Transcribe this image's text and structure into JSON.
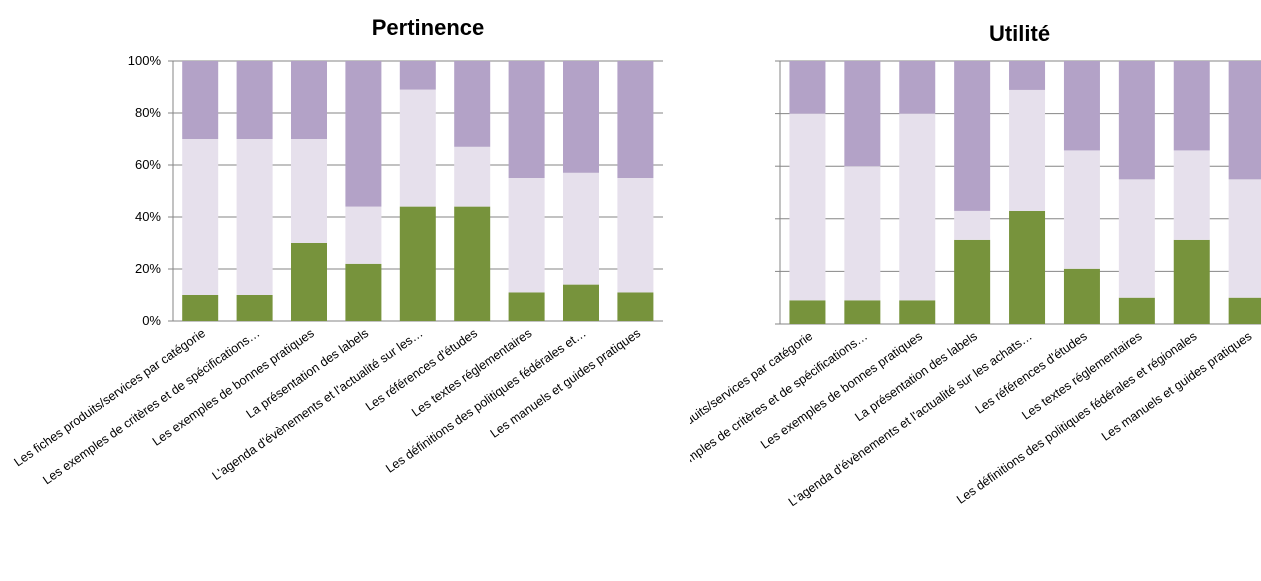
{
  "colors": {
    "segment_bottom": "#77933c",
    "segment_middle": "#e6e0ec",
    "segment_top": "#b3a2c7",
    "gridline": "#868686",
    "axis": "#868686"
  },
  "chart_data": [
    {
      "type": "bar",
      "stacked": true,
      "title": "Pertinence",
      "ylim": [
        0,
        100
      ],
      "yticks": [
        "0%",
        "20%",
        "40%",
        "60%",
        "80%",
        "100%"
      ],
      "ytick_values": [
        0,
        20,
        40,
        60,
        80,
        100
      ],
      "grid": true,
      "categories": [
        "Les fiches produits/services par catégorie",
        "Les exemples de critères et de spécifications…",
        "Les exemples de bonnes pratiques",
        "La présentation des labels",
        "L'agenda d'évènements et l'actualité sur les…",
        "Les références d'études",
        "Les textes réglementaires",
        "Les définitions des politiques fédérales et…",
        "Les manuels et guides pratiques"
      ],
      "series": [
        {
          "values": [
            10,
            10,
            30,
            22,
            44,
            44,
            11,
            14,
            11
          ]
        },
        {
          "values": [
            60,
            60,
            40,
            22,
            45,
            23,
            44,
            43,
            44
          ]
        },
        {
          "values": [
            30,
            30,
            30,
            56,
            11,
            33,
            45,
            43,
            45
          ]
        }
      ]
    },
    {
      "type": "bar",
      "stacked": true,
      "title": "Utilité",
      "ylim": [
        0,
        100
      ],
      "yticks": [],
      "ytick_values": [
        0,
        20,
        40,
        60,
        80,
        100
      ],
      "grid": true,
      "categories": [
        "Les fiches produits/services par catégorie",
        "Les exemples de critères et de spécifications…",
        "Les exemples de bonnes pratiques",
        "La présentation des labels",
        "L'agenda d'évènements et l'actualité sur les achats…",
        "Les références d'études",
        "Les textes réglementaires",
        "Les définitions des politiques fédérales et régionales",
        "Les manuels et guides pratiques"
      ],
      "series": [
        {
          "values": [
            9,
            9,
            9,
            32,
            43,
            21,
            10,
            32,
            10
          ]
        },
        {
          "values": [
            71,
            51,
            71,
            11,
            46,
            45,
            45,
            34,
            45
          ]
        },
        {
          "values": [
            20,
            40,
            20,
            57,
            11,
            34,
            45,
            34,
            45
          ]
        }
      ]
    }
  ]
}
